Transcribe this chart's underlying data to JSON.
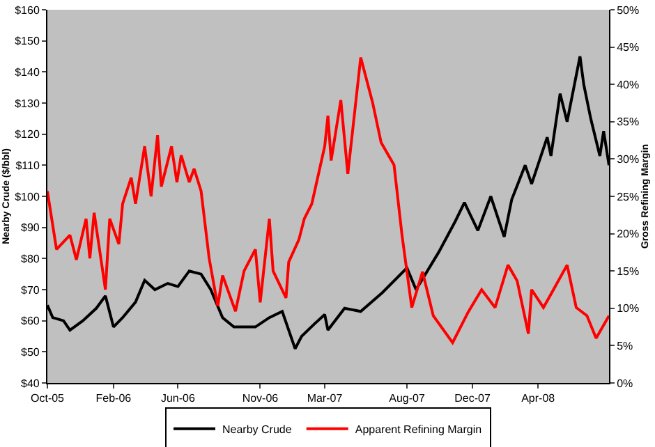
{
  "chart_data": {
    "type": "line",
    "ylabel": "Nearby Crude ($/bbl)",
    "y2label": "Gross Refining Margin",
    "xlim": [
      "2005-10-01",
      "2008-08-11"
    ],
    "xticks": [
      {
        "value": "2005-10-01",
        "label": "Oct-05"
      },
      {
        "value": "2006-02-01",
        "label": "Feb-06"
      },
      {
        "value": "2006-06-01",
        "label": "Jun-06"
      },
      {
        "value": "2006-11-01",
        "label": "Nov-06"
      },
      {
        "value": "2007-03-01",
        "label": "Mar-07"
      },
      {
        "value": "2007-08-01",
        "label": "Aug-07"
      },
      {
        "value": "2007-12-01",
        "label": "Dec-07"
      },
      {
        "value": "2008-04-01",
        "label": "Apr-08"
      }
    ],
    "ylim": [
      40,
      160
    ],
    "yticks": [
      {
        "value": 40,
        "label": "$40"
      },
      {
        "value": 50,
        "label": "$50"
      },
      {
        "value": 60,
        "label": "$60"
      },
      {
        "value": 70,
        "label": "$70"
      },
      {
        "value": 80,
        "label": "$80"
      },
      {
        "value": 90,
        "label": "$90"
      },
      {
        "value": 100,
        "label": "$100"
      },
      {
        "value": 110,
        "label": "$110"
      },
      {
        "value": 120,
        "label": "$120"
      },
      {
        "value": 130,
        "label": "$130"
      },
      {
        "value": 140,
        "label": "$140"
      },
      {
        "value": 150,
        "label": "$150"
      },
      {
        "value": 160,
        "label": "$160"
      }
    ],
    "y2lim": [
      0,
      50
    ],
    "y2ticks": [
      {
        "value": 0,
        "label": "0%"
      },
      {
        "value": 5,
        "label": "5%"
      },
      {
        "value": 10,
        "label": "10%"
      },
      {
        "value": 15,
        "label": "15%"
      },
      {
        "value": 20,
        "label": "20%"
      },
      {
        "value": 25,
        "label": "25%"
      },
      {
        "value": 30,
        "label": "30%"
      },
      {
        "value": 35,
        "label": "35%"
      },
      {
        "value": 40,
        "label": "40%"
      },
      {
        "value": 45,
        "label": "45%"
      },
      {
        "value": 50,
        "label": "50%"
      }
    ],
    "grid": false,
    "legend": "bottom",
    "marker": "none",
    "line_style": "solid",
    "series": [
      {
        "name": "Nearby Crude",
        "color": "#000000",
        "x": [
          "2005-10-01",
          "2005-10-11",
          "2005-10-31",
          "2005-11-12",
          "2005-12-06",
          "2005-12-31",
          "2006-01-17",
          "2006-02-01",
          "2006-02-18",
          "2006-03-14",
          "2006-03-31",
          "2006-04-19",
          "2006-05-13",
          "2006-06-01",
          "2006-06-22",
          "2006-07-14",
          "2006-08-01",
          "2006-08-23",
          "2006-09-13",
          "2006-10-23",
          "2006-11-18",
          "2006-12-12",
          "2007-01-05",
          "2007-01-17",
          "2007-02-10",
          "2007-03-01",
          "2007-03-07",
          "2007-04-07",
          "2007-05-07",
          "2007-06-16",
          "2007-08-01",
          "2007-08-18",
          "2007-09-29",
          "2007-10-30",
          "2007-11-16",
          "2007-12-11",
          "2008-01-04",
          "2008-01-29",
          "2008-02-12",
          "2008-03-08",
          "2008-03-20",
          "2008-04-18",
          "2008-04-25",
          "2008-05-12",
          "2008-05-25",
          "2008-06-18",
          "2008-06-25",
          "2008-07-08",
          "2008-07-25",
          "2008-08-01",
          "2008-08-11"
        ],
        "values": [
          65,
          61,
          60,
          57,
          60,
          64,
          68,
          58,
          61,
          66,
          73,
          70,
          72,
          71,
          76,
          75,
          70,
          61,
          58,
          58,
          61,
          63,
          51,
          55,
          59,
          62,
          57,
          64,
          63,
          69,
          77,
          70,
          82,
          92,
          98,
          89,
          100,
          87,
          99,
          110,
          104,
          119,
          113,
          133,
          124,
          145,
          136,
          125,
          113,
          121,
          110
        ]
      },
      {
        "name": "Apparent Refining Margin",
        "color": "#ff0000",
        "axis": "y2",
        "x": [
          "2005-10-01",
          "2005-10-18",
          "2005-11-12",
          "2005-11-24",
          "2005-12-12",
          "2005-12-19",
          "2005-12-27",
          "2006-01-17",
          "2006-01-25",
          "2006-02-11",
          "2006-02-18",
          "2006-03-06",
          "2006-03-14",
          "2006-03-31",
          "2006-04-12",
          "2006-04-24",
          "2006-05-01",
          "2006-05-20",
          "2006-05-30",
          "2006-06-07",
          "2006-06-22",
          "2006-07-01",
          "2006-07-14",
          "2006-07-29",
          "2006-08-14",
          "2006-08-23",
          "2006-09-16",
          "2006-10-02",
          "2006-10-23",
          "2006-11-01",
          "2006-11-18",
          "2006-11-25",
          "2006-12-19",
          "2006-12-24",
          "2007-01-12",
          "2007-01-22",
          "2007-02-05",
          "2007-03-01",
          "2007-03-07",
          "2007-03-13",
          "2007-03-31",
          "2007-04-13",
          "2007-05-07",
          "2007-05-29",
          "2007-06-14",
          "2007-07-08",
          "2007-07-23",
          "2007-08-10",
          "2007-08-30",
          "2007-09-19",
          "2007-10-25",
          "2007-11-23",
          "2007-12-18",
          "2008-01-12",
          "2008-02-05",
          "2008-02-22",
          "2008-03-14",
          "2008-03-20",
          "2008-04-11",
          "2008-04-25",
          "2008-05-25",
          "2008-06-11",
          "2008-07-01",
          "2008-07-18",
          "2008-08-11"
        ],
        "values": [
          25.7,
          17.9,
          19.8,
          16.5,
          22,
          16.7,
          22.8,
          12.5,
          22,
          18.6,
          24,
          27.5,
          24,
          31.7,
          25,
          33.2,
          26.3,
          31.7,
          26.9,
          30.5,
          26.9,
          28.7,
          25.7,
          16.7,
          10.3,
          14.4,
          9.6,
          15,
          17.9,
          10.8,
          22,
          15,
          11.4,
          16.2,
          19.2,
          22,
          24,
          31.7,
          35.8,
          29.8,
          37.9,
          28,
          43.6,
          37.6,
          32.2,
          29.2,
          19.7,
          10.1,
          14.9,
          9,
          5.4,
          9.5,
          12.5,
          10.1,
          15.8,
          13.7,
          6.6,
          12.5,
          10.1,
          11.9,
          15.8,
          10.1,
          9,
          6,
          9
        ]
      }
    ]
  }
}
